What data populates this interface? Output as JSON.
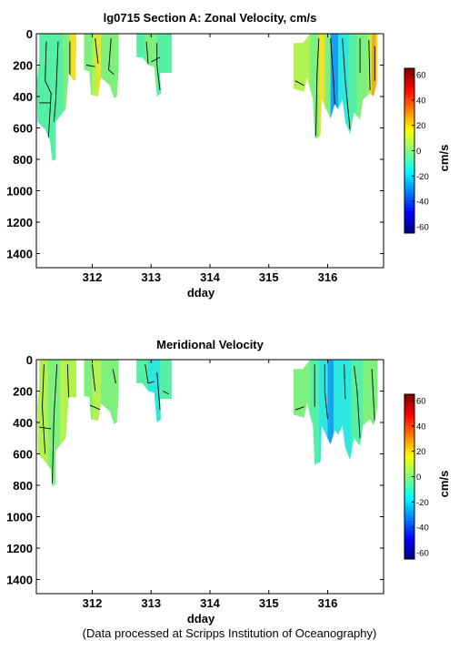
{
  "chart_data": [
    {
      "type": "heatmap",
      "title": "lg0715 Section A: Zonal Velocity, cm/s",
      "xlabel": "dday",
      "ylabel": "",
      "xlim": [
        311.05,
        316.95
      ],
      "ylim": [
        1490,
        0
      ],
      "x_ticks": [
        312,
        313,
        314,
        315,
        316
      ],
      "y_ticks": [
        0,
        200,
        400,
        600,
        800,
        1000,
        1200,
        1400
      ],
      "y_inverted": true,
      "colorbar": {
        "label": "cm/s",
        "range": [
          -65,
          65
        ],
        "ticks": [
          60,
          40,
          20,
          0,
          -20,
          -40,
          -60
        ],
        "colormap": "jet"
      },
      "contours": "black contour lines of velocity",
      "segments": [
        {
          "x_start": 311.05,
          "x_end": 311.75,
          "depth_max": 800,
          "value": 10,
          "note": "green-cyan, yellow near 311.7"
        },
        {
          "x_start": 311.85,
          "x_end": 312.45,
          "depth_max": 410,
          "value": 15,
          "note": "green with yellow streak near 312.1"
        },
        {
          "x_start": 312.75,
          "x_end": 313.35,
          "depth_max": 400,
          "value": 12,
          "note": "green-cyan"
        },
        {
          "x_start": 315.4,
          "x_end": 316.85,
          "depth_max": 690,
          "value": 5,
          "note": "cyan to blue near 316.1, yellow-orange near 316.8"
        }
      ]
    },
    {
      "type": "heatmap",
      "title": "Meridional Velocity",
      "xlabel": "dday",
      "ylabel": "",
      "xlim": [
        311.05,
        316.95
      ],
      "ylim": [
        1490,
        0
      ],
      "x_ticks": [
        312,
        313,
        314,
        315,
        316
      ],
      "y_ticks": [
        0,
        200,
        400,
        600,
        800,
        1000,
        1200,
        1400
      ],
      "y_inverted": true,
      "colorbar": {
        "label": "cm/s",
        "range": [
          -65,
          65
        ],
        "ticks": [
          60,
          40,
          20,
          0,
          -20,
          -40,
          -60
        ],
        "colormap": "jet"
      },
      "contours": "black contour lines of velocity",
      "segments": [
        {
          "x_start": 311.05,
          "x_end": 311.75,
          "depth_max": 810,
          "value": 14,
          "note": "green-yellow"
        },
        {
          "x_start": 311.85,
          "x_end": 312.45,
          "depth_max": 410,
          "value": 12,
          "note": "green"
        },
        {
          "x_start": 312.75,
          "x_end": 313.35,
          "depth_max": 400,
          "value": 5,
          "note": "cyan-green"
        },
        {
          "x_start": 315.4,
          "x_end": 316.85,
          "depth_max": 690,
          "value": 3,
          "note": "cyan center, green edges"
        }
      ]
    }
  ],
  "footer": "(Data processed at Scripps Institution of Oceanography)",
  "colors": {
    "green": "#7ef07e",
    "green_cyan": "#55f0a5",
    "cyan": "#2ee8e0",
    "light_green": "#b2f250",
    "yellow": "#f2e028",
    "orange": "#f7a81c",
    "blue": "#1aa0f2",
    "contour": "#000000"
  }
}
